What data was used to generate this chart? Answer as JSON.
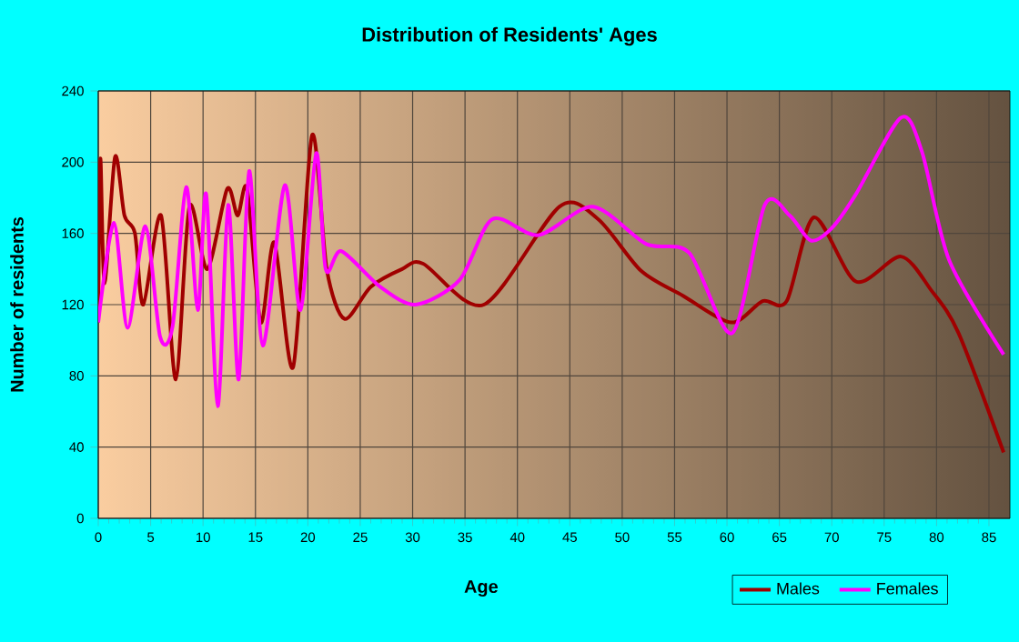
{
  "chart_data": {
    "type": "line",
    "title": "Distribution of Residents' Ages",
    "xlabel": "Age",
    "ylabel": "Number of residents",
    "xlim": [
      0,
      87
    ],
    "ylim": [
      0,
      240
    ],
    "xticks": [
      0,
      5,
      10,
      15,
      20,
      25,
      30,
      35,
      40,
      45,
      50,
      55,
      60,
      65,
      70,
      75,
      80,
      85
    ],
    "yticks": [
      0,
      40,
      80,
      120,
      160,
      200,
      240
    ],
    "grid": true,
    "legend": "bottom right",
    "series": [
      {
        "name": "Males",
        "color": "#a00000",
        "x": [
          0,
          0.2,
          0.6,
          1.6,
          2.5,
          3.5,
          4.3,
          6,
          7.4,
          8.7,
          10.4,
          12.3,
          13.3,
          14.2,
          15.5,
          16.8,
          18.6,
          20.4,
          21.8,
          23.5,
          26,
          29,
          31,
          36.8,
          44,
          47.7,
          51.8,
          55.8,
          60.4,
          63.4,
          65.7,
          68.3,
          72.3,
          76.6,
          79.5,
          82.1,
          86.4
        ],
        "values": [
          110,
          202,
          132,
          203,
          170,
          160,
          120,
          170,
          78,
          175,
          140,
          185,
          170,
          185,
          110,
          155,
          85,
          215,
          140,
          112,
          130,
          140,
          143,
          120,
          175,
          168,
          139,
          125,
          110,
          122,
          122,
          169,
          133,
          147,
          128,
          104,
          37
        ]
      },
      {
        "name": "Females",
        "color": "#ff00ff",
        "x": [
          0,
          1.5,
          2.8,
          4.5,
          5.9,
          7.1,
          8.4,
          9.5,
          10.3,
          11.4,
          12.4,
          13.4,
          14.4,
          15.7,
          17.8,
          19.3,
          20.8,
          21.7,
          23.2,
          26.9,
          30.3,
          34.5,
          37.6,
          42,
          47.2,
          52.3,
          56.4,
          60.5,
          63.6,
          66,
          68,
          70,
          72.3,
          76.6,
          78.6,
          81.2,
          86.4
        ],
        "values": [
          110,
          166,
          107,
          164,
          102,
          108,
          186,
          117,
          182,
          63,
          176,
          78,
          195,
          97,
          187,
          117,
          205,
          140,
          150,
          130,
          120,
          134,
          168,
          159,
          175,
          154,
          149,
          104,
          176,
          170,
          156,
          163,
          182,
          225,
          206,
          145,
          92
        ]
      }
    ]
  }
}
